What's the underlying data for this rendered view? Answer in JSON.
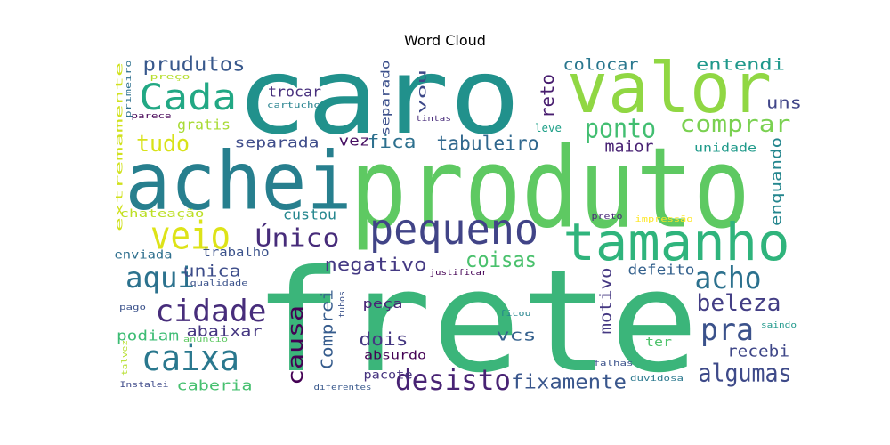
{
  "chart_data": {
    "type": "wordcloud",
    "title": "Word Cloud",
    "words": [
      {
        "text": "frete",
        "color": "#3bb57a"
      },
      {
        "text": "produto",
        "color": "#5ec962"
      },
      {
        "text": "caro",
        "color": "#21918c"
      },
      {
        "text": "achei",
        "color": "#277f8e"
      },
      {
        "text": "valor",
        "color": "#90d743"
      },
      {
        "text": "tamanho",
        "color": "#2fb47c"
      },
      {
        "text": "pequeno",
        "color": "#414487"
      },
      {
        "text": "veio",
        "color": "#dde318"
      },
      {
        "text": "Cada",
        "color": "#22a884"
      },
      {
        "text": "caixa",
        "color": "#2a788e"
      },
      {
        "text": "cidade",
        "color": "#472d7b"
      },
      {
        "text": "aqui",
        "color": "#2c728e"
      },
      {
        "text": "Único",
        "color": "#472c7a"
      },
      {
        "text": "acho",
        "color": "#2c718e"
      },
      {
        "text": "pra",
        "color": "#3b528b"
      },
      {
        "text": "desisto",
        "color": "#482374"
      },
      {
        "text": "algumas",
        "color": "#3e4a89"
      },
      {
        "text": "beleza",
        "color": "#433e85"
      },
      {
        "text": "ponto",
        "color": "#42be71"
      },
      {
        "text": "comprar",
        "color": "#7ad151"
      },
      {
        "text": "coisas",
        "color": "#4ac16d"
      },
      {
        "text": "tudo",
        "color": "#d8e219"
      },
      {
        "text": "prudutos",
        "color": "#38588c"
      },
      {
        "text": "causa",
        "color": "#440154"
      },
      {
        "text": "tabuleiro",
        "color": "#31688e"
      },
      {
        "text": "fixamente",
        "color": "#39568c"
      },
      {
        "text": "negativo",
        "color": "#443983"
      },
      {
        "text": "fica",
        "color": "#2d708e"
      },
      {
        "text": "dois",
        "color": "#453781"
      },
      {
        "text": "colocar",
        "color": "#2a778e"
      },
      {
        "text": "entendi",
        "color": "#1f988b"
      },
      {
        "text": "custou",
        "color": "#24868e"
      },
      {
        "text": "separada",
        "color": "#3e4c8a"
      },
      {
        "text": "reto",
        "color": "#481d6f"
      },
      {
        "text": "Comprei",
        "color": "#365c8d"
      },
      {
        "text": "motivo",
        "color": "#453882"
      },
      {
        "text": "enquando",
        "color": "#24868e"
      },
      {
        "text": "gratis",
        "color": "#a8db34"
      },
      {
        "text": "uns",
        "color": "#404588"
      },
      {
        "text": "maior",
        "color": "#482173"
      },
      {
        "text": "recebi",
        "color": "#3f4788"
      },
      {
        "text": "vcs",
        "color": "#34608d"
      },
      {
        "text": "defeito",
        "color": "#34618d"
      },
      {
        "text": "unica",
        "color": "#3d4d8a"
      },
      {
        "text": "trocar",
        "color": "#472f7d"
      },
      {
        "text": "abaixar",
        "color": "#453781"
      },
      {
        "text": "podiam",
        "color": "#3dbc74"
      },
      {
        "text": "caberia",
        "color": "#46c06f"
      },
      {
        "text": "vez",
        "color": "#471063"
      },
      {
        "text": "trabalho",
        "color": "#3b528b"
      },
      {
        "text": "peça",
        "color": "#482576"
      },
      {
        "text": "enviada",
        "color": "#2e6f8e"
      },
      {
        "text": "absurdo",
        "color": "#440154"
      },
      {
        "text": "pacote",
        "color": "#46337f"
      },
      {
        "text": "ter",
        "color": "#4ec36b"
      },
      {
        "text": "unidade",
        "color": "#1f9a8a"
      },
      {
        "text": "separado",
        "color": "#3c508b"
      },
      {
        "text": "vou",
        "color": "#3e4989"
      },
      {
        "text": "leve",
        "color": "#1fa088"
      },
      {
        "text": "chateação",
        "color": "#bddf26"
      },
      {
        "text": "extremamente",
        "color": "#d0e11c"
      },
      {
        "text": "primeiro",
        "color": "#2d708e"
      },
      {
        "text": "preço",
        "color": "#b5de2b"
      },
      {
        "text": "cartucho",
        "color": "#26828e"
      },
      {
        "text": "tintas",
        "color": "#472a7a"
      },
      {
        "text": "parece",
        "color": "#440154"
      },
      {
        "text": "justificar",
        "color": "#440154"
      },
      {
        "text": "qualidade",
        "color": "#3b528b"
      },
      {
        "text": "tubos",
        "color": "#3b528b"
      },
      {
        "text": "ficou",
        "color": "#25848e"
      },
      {
        "text": "pago",
        "color": "#3b528b"
      },
      {
        "text": "anúncio",
        "color": "#5ec962"
      },
      {
        "text": "talvez",
        "color": "#b5de2b"
      },
      {
        "text": "Instalei",
        "color": "#3e4a89"
      },
      {
        "text": "diferentes",
        "color": "#38588c"
      },
      {
        "text": "falhas",
        "color": "#3b528b"
      },
      {
        "text": "duvidosa",
        "color": "#2a788e"
      },
      {
        "text": "saindo",
        "color": "#1f988b"
      },
      {
        "text": "preto",
        "color": "#482878"
      },
      {
        "text": "impressão",
        "color": "#fde725"
      }
    ]
  }
}
